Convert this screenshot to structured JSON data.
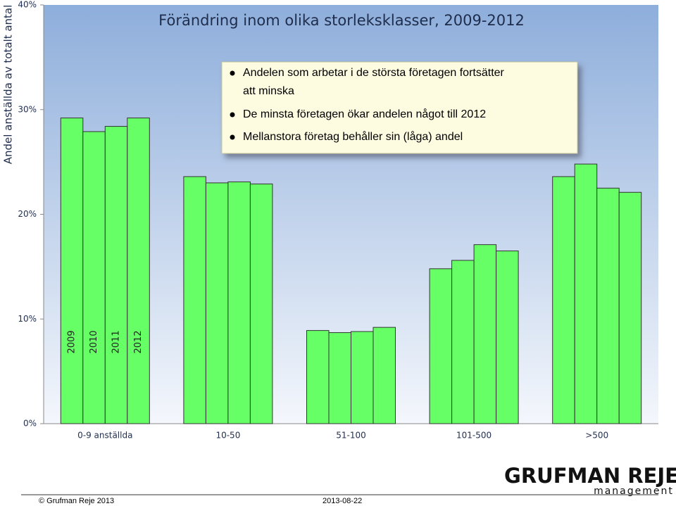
{
  "chart_data": {
    "type": "bar",
    "title": "Förändring inom olika storleksklasser, 2009-2012",
    "y_label": "Andel anställda av totalt antal",
    "categories": [
      "0-9 anställda",
      "10-50",
      "51-100",
      "101-500",
      ">500"
    ],
    "series": [
      {
        "name": "2009",
        "color": "#66ff66",
        "values": [
          29.2,
          23.6,
          8.9,
          14.8,
          23.6
        ]
      },
      {
        "name": "2010",
        "color": "#66ff66",
        "values": [
          27.9,
          23.0,
          8.7,
          15.6,
          24.8
        ]
      },
      {
        "name": "2011",
        "color": "#66ff66",
        "values": [
          28.4,
          23.1,
          8.8,
          17.1,
          22.5
        ]
      },
      {
        "name": "2012",
        "color": "#66ff66",
        "values": [
          29.2,
          22.9,
          9.2,
          16.5,
          22.1
        ]
      }
    ],
    "ylim": [
      0,
      40
    ],
    "yticks": [
      {
        "value": 0,
        "label": "0%"
      },
      {
        "value": 10,
        "label": "10%"
      },
      {
        "value": 20,
        "label": "20%"
      },
      {
        "value": 30,
        "label": "30%"
      },
      {
        "value": 40,
        "label": "40%"
      }
    ],
    "grid": false
  },
  "callout": [
    "Andelen som arbetar i de största företagen fortsätter att minska",
    "De minsta företagen ökar andelen något till 2012",
    "Mellanstora företag behåller sin (låga) andel"
  ],
  "logo": {
    "name": "GRUFMAN REJE",
    "sub": "management"
  },
  "footer": {
    "copyright": "© Grufman Reje 2013",
    "date": "2013-08-22"
  }
}
